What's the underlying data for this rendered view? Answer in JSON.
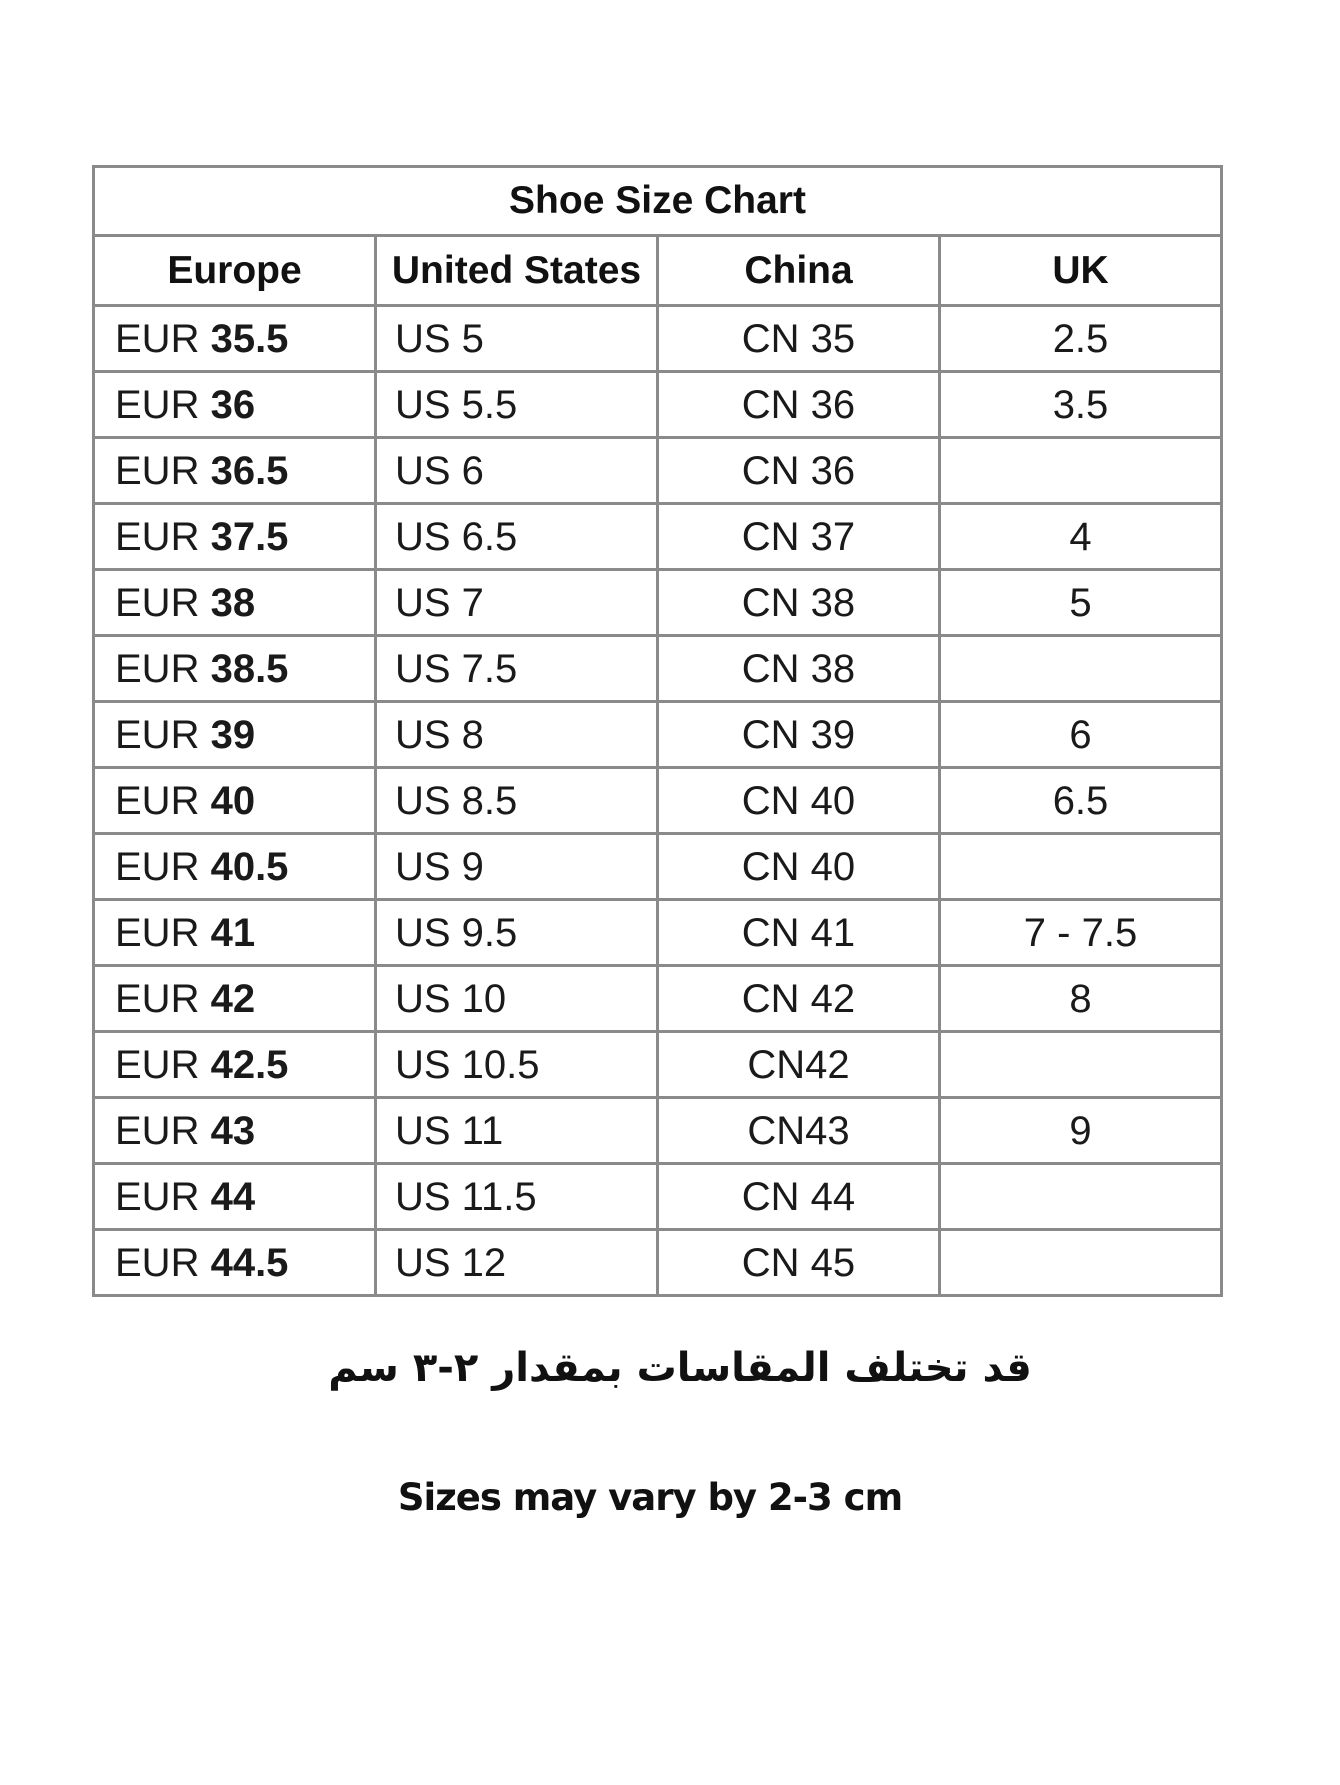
{
  "chart_data": {
    "type": "table",
    "title": "Shoe Size Chart",
    "columns": [
      "Europe",
      "United States",
      "China",
      "UK"
    ],
    "rows": [
      {
        "eu_prefix": "EUR",
        "eu": "35.5",
        "us": "US 5",
        "cn": "CN 35",
        "uk": "2.5"
      },
      {
        "eu_prefix": "EUR",
        "eu": "36",
        "us": "US 5.5",
        "cn": "CN 36",
        "uk": "3.5"
      },
      {
        "eu_prefix": "EUR",
        "eu": "36.5",
        "us": "US 6",
        "cn": "CN 36",
        "uk": ""
      },
      {
        "eu_prefix": "EUR",
        "eu": "37.5",
        "us": "US 6.5",
        "cn": "CN 37",
        "uk": "4"
      },
      {
        "eu_prefix": "EUR",
        "eu": "38",
        "us": "US 7",
        "cn": "CN 38",
        "uk": "5"
      },
      {
        "eu_prefix": "EUR",
        "eu": "38.5",
        "us": "US 7.5",
        "cn": "CN 38",
        "uk": ""
      },
      {
        "eu_prefix": "EUR",
        "eu": "39",
        "us": "US 8",
        "cn": "CN 39",
        "uk": "6"
      },
      {
        "eu_prefix": "EUR",
        "eu": "40",
        "us": "US 8.5",
        "cn": "CN 40",
        "uk": "6.5"
      },
      {
        "eu_prefix": "EUR",
        "eu": "40.5",
        "us": "US 9",
        "cn": "CN 40",
        "uk": ""
      },
      {
        "eu_prefix": "EUR",
        "eu": "41",
        "us": "US 9.5",
        "cn": "CN 41",
        "uk": "7 - 7.5"
      },
      {
        "eu_prefix": "EUR",
        "eu": "42",
        "us": "US 10",
        "cn": "CN 42",
        "uk": "8"
      },
      {
        "eu_prefix": "EUR",
        "eu": "42.5",
        "us": "US 10.5",
        "cn": "CN42",
        "uk": ""
      },
      {
        "eu_prefix": "EUR",
        "eu": "43",
        "us": "US 11",
        "cn": "CN43",
        "uk": "9"
      },
      {
        "eu_prefix": "EUR",
        "eu": "44",
        "us": "US 11.5",
        "cn": "CN 44",
        "uk": ""
      },
      {
        "eu_prefix": "EUR",
        "eu": "44.5",
        "us": "US 12",
        "cn": "CN 45",
        "uk": ""
      }
    ]
  },
  "notes": {
    "arabic": "قد تختلف المقاسات بمقدار ٢-٣ سم",
    "english": "Sizes may vary by 2-3 cm"
  }
}
